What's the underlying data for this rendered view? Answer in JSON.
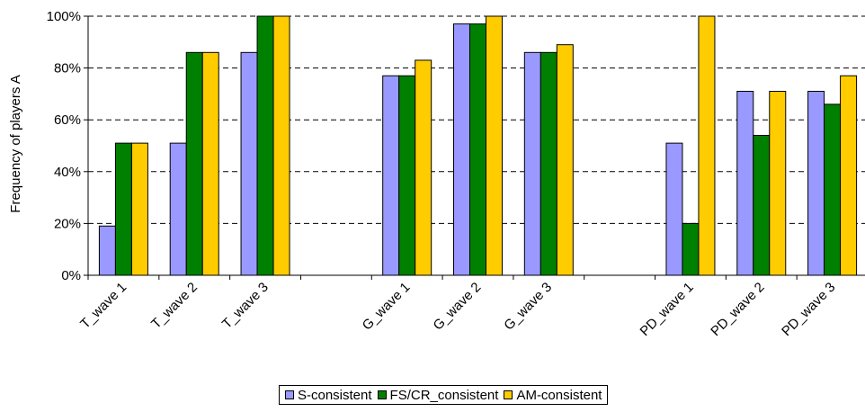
{
  "chart_data": {
    "type": "bar",
    "ylabel": "Frequency of players A",
    "xlabel": "",
    "ylim": [
      0,
      100
    ],
    "yticks": [
      "0%",
      "20%",
      "40%",
      "60%",
      "80%",
      "100%"
    ],
    "grid": "horizontal dashed",
    "legend_position": "bottom",
    "categories": [
      "T_wave 1",
      "T_wave 2",
      "T_wave 3",
      "",
      "G_wave 1",
      "G_wave 2",
      "G_wave 3",
      "",
      "PD_wave 1",
      "PD_wave 2",
      "PD_wave 3"
    ],
    "series": [
      {
        "name": "S-consistent",
        "color": "#9999ff",
        "values": [
          19,
          51,
          86,
          null,
          77,
          97,
          86,
          null,
          51,
          71,
          71
        ]
      },
      {
        "name": "FS/CR_consistent",
        "color": "#008000",
        "values": [
          51,
          86,
          100,
          null,
          77,
          97,
          86,
          null,
          20,
          54,
          66
        ]
      },
      {
        "name": "AM-consistent",
        "color": "#ffcc00",
        "values": [
          51,
          86,
          100,
          null,
          83,
          100,
          89,
          null,
          100,
          71,
          77
        ]
      }
    ]
  }
}
